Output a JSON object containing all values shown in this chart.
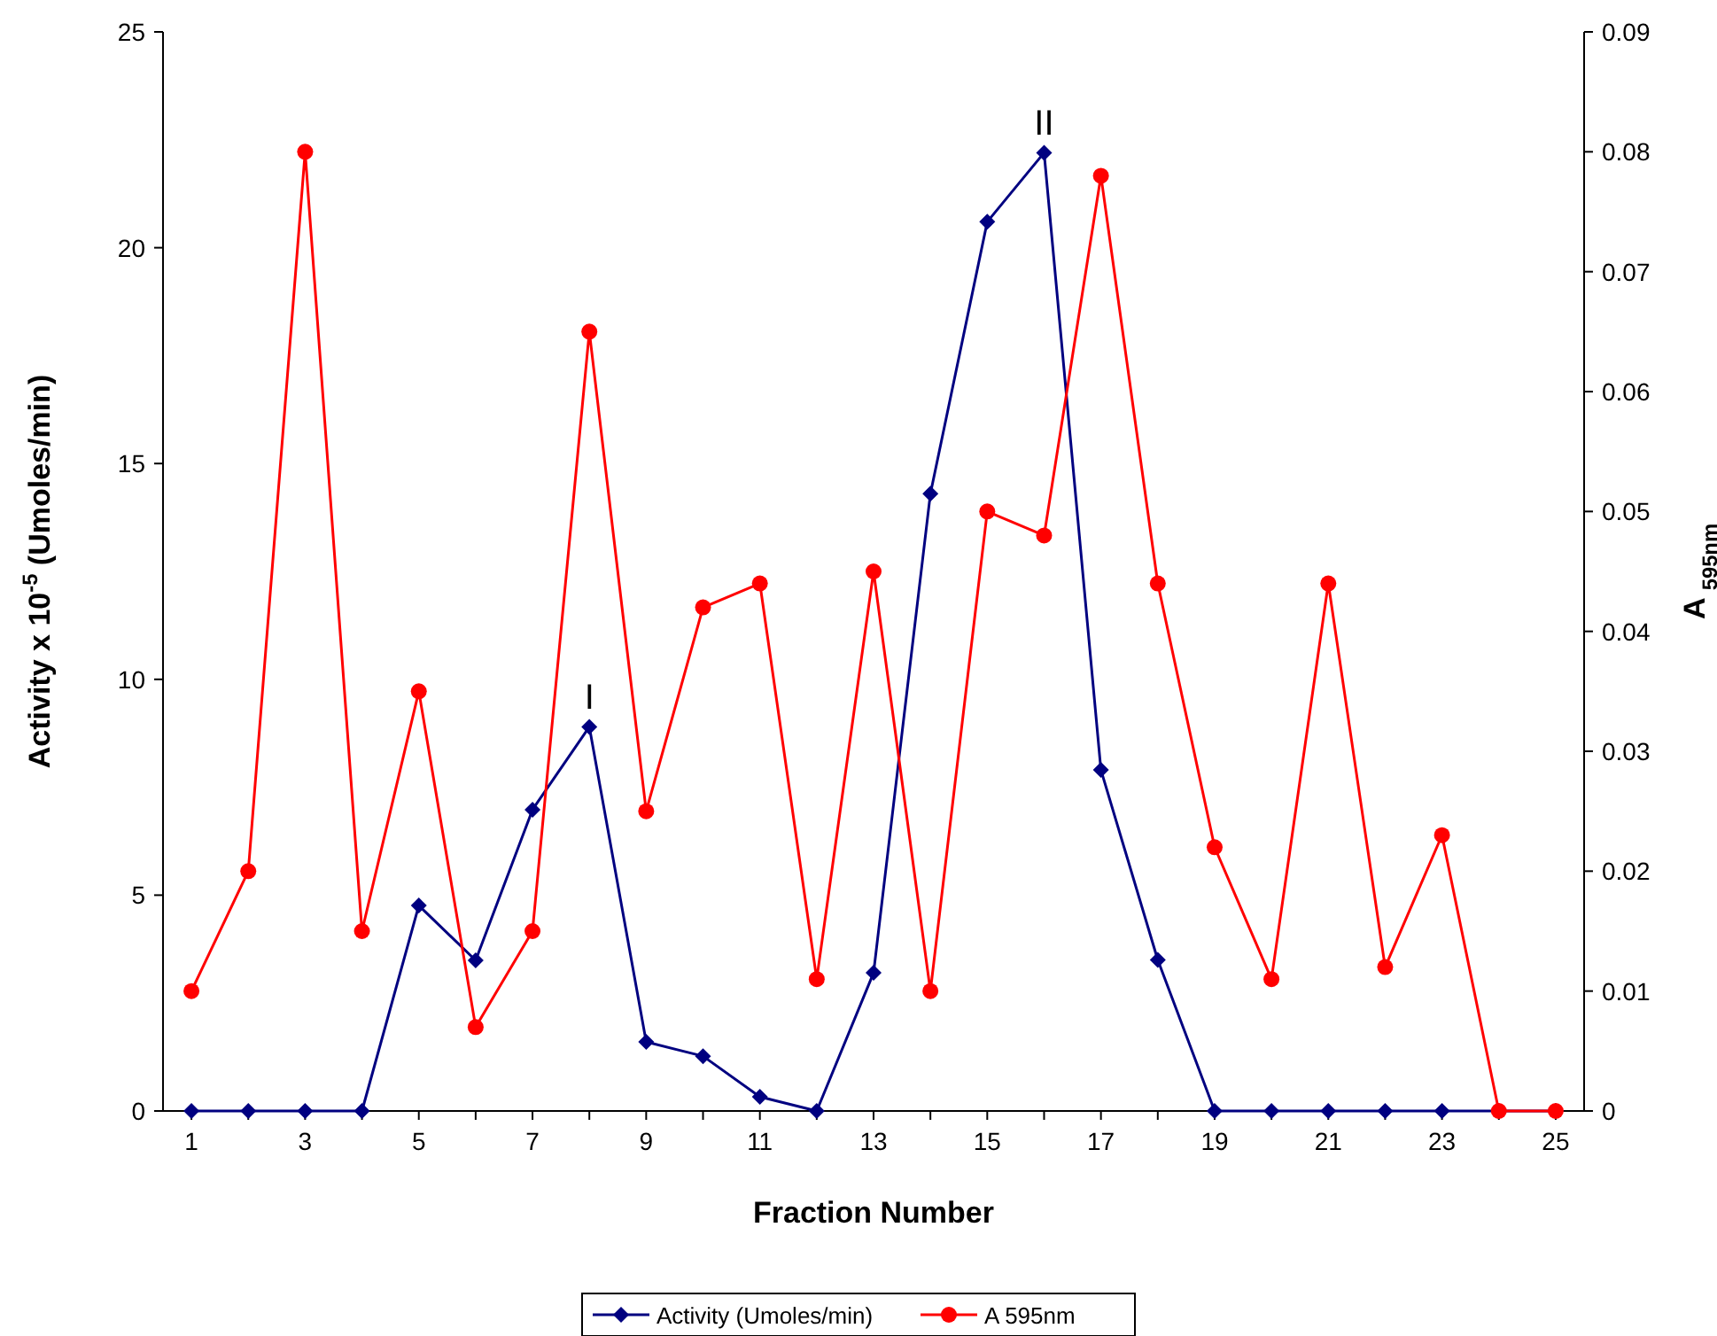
{
  "chart_data": {
    "type": "line",
    "xlabel": "Fraction Number",
    "ylabel": "Activity x 10$^{-5}$ (Umoles/min)",
    "y2label": "A $_{595nm}$",
    "x": [
      1,
      2,
      3,
      4,
      5,
      6,
      7,
      8,
      9,
      10,
      11,
      12,
      13,
      14,
      15,
      16,
      17,
      18,
      19,
      20,
      21,
      22,
      23,
      24,
      25
    ],
    "xlim": [
      0.5,
      25.5
    ],
    "xticks": [
      1,
      {
        "value": 2,
        "label": null
      },
      3,
      {
        "value": 4,
        "label": null
      },
      5,
      {
        "value": 6,
        "label": null
      },
      7,
      {
        "value": 8,
        "label": null
      },
      9,
      {
        "value": 10,
        "label": null
      },
      11,
      {
        "value": 12,
        "label": null
      },
      13,
      {
        "value": 14,
        "label": null
      },
      15,
      {
        "value": 16,
        "label": null
      },
      17,
      {
        "value": 18,
        "label": null
      },
      19,
      {
        "value": 20,
        "label": null
      },
      21,
      {
        "value": 22,
        "label": null
      },
      23,
      {
        "value": 24,
        "label": null
      },
      25
    ],
    "ylim": [
      0,
      25
    ],
    "yticks": [
      0,
      5,
      10,
      15,
      20,
      25
    ],
    "y2lim": [
      0,
      0.09
    ],
    "y2ticks": [
      0,
      0.01,
      0.02,
      0.03,
      0.04,
      0.05,
      0.06,
      0.07,
      0.08,
      0.09
    ],
    "series": [
      {
        "name": "Activity (Umoles/min)",
        "color": "#000080",
        "marker": "diamond",
        "values": [
          0,
          0,
          0,
          0,
          4.76,
          3.49,
          6.98,
          8.9,
          1.6,
          1.27,
          0.33,
          0,
          3.2,
          14.3,
          20.6,
          22.2,
          7.9,
          3.5,
          0,
          0,
          0,
          0,
          0,
          0,
          0
        ]
      },
      {
        "name": "A 595nm",
        "color": "#ff0000",
        "marker": "circle",
        "axis": "y2",
        "values": [
          0.01,
          0.02,
          0.08,
          0.015,
          0.035,
          0.007,
          0.015,
          0.065,
          0.025,
          0.042,
          0.044,
          0.011,
          0.045,
          0.01,
          0.05,
          0.048,
          0.078,
          0.044,
          0.022,
          0.011,
          0.044,
          0.012,
          0.023,
          0,
          0
        ]
      }
    ],
    "annotations": [
      {
        "text": "I",
        "x": 8,
        "y": 8.9
      },
      {
        "text": "II",
        "x": 16,
        "y": 22.2
      }
    ],
    "grid": false,
    "legend": "bottom",
    "line_style": "solid"
  }
}
